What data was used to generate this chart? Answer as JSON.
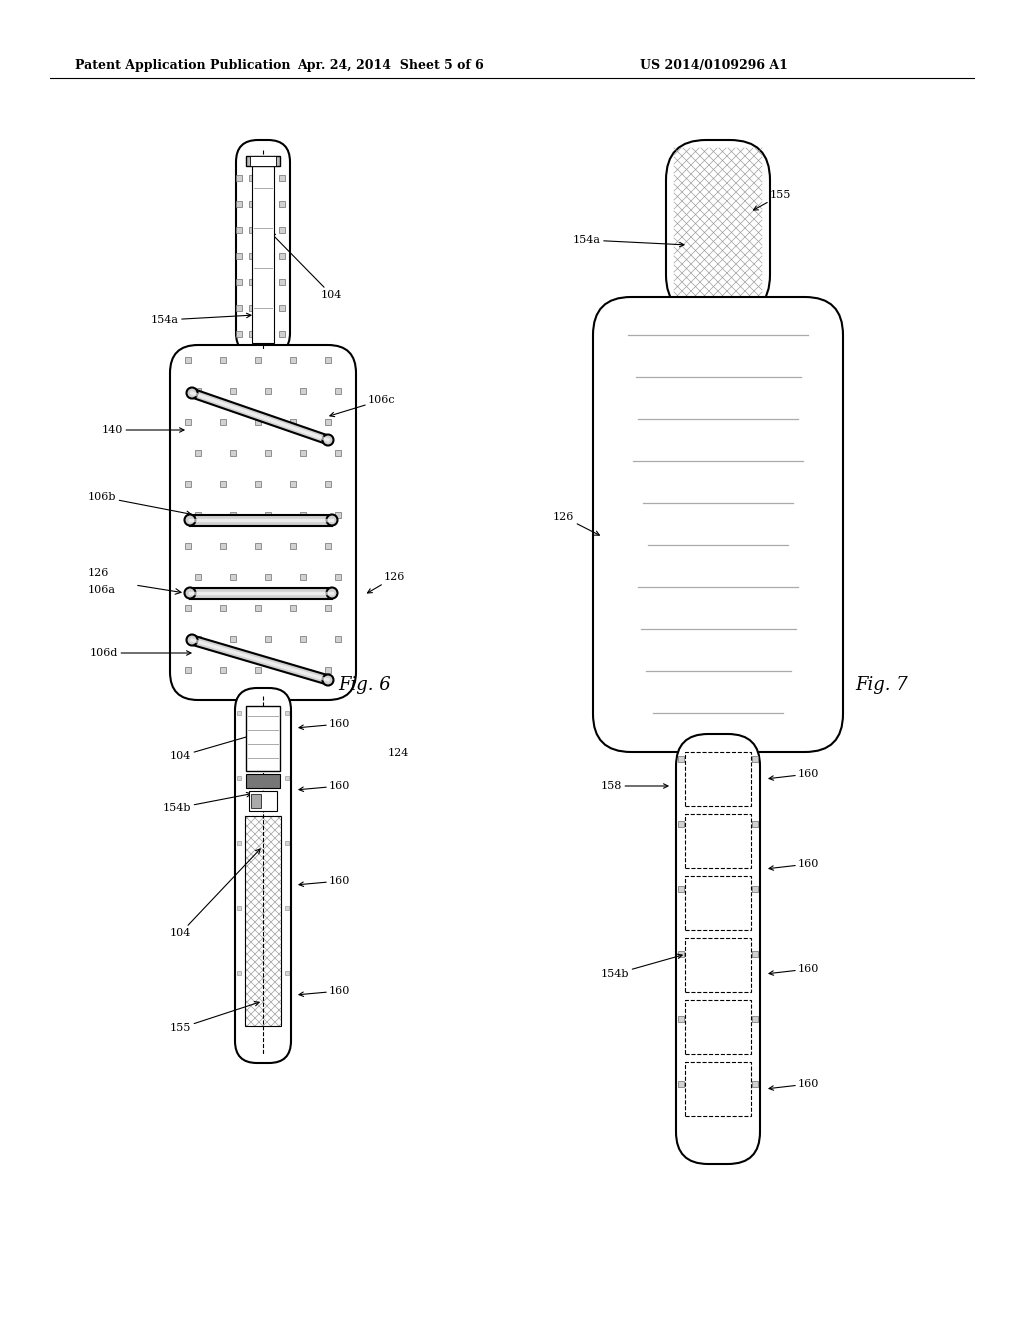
{
  "header_left": "Patent Application Publication",
  "header_mid": "Apr. 24, 2014  Sheet 5 of 6",
  "header_right": "US 2014/0109296 A1",
  "fig6_label": "Fig. 6",
  "fig7_label": "Fig. 7",
  "bg_color": "#ffffff",
  "line_color": "#000000"
}
